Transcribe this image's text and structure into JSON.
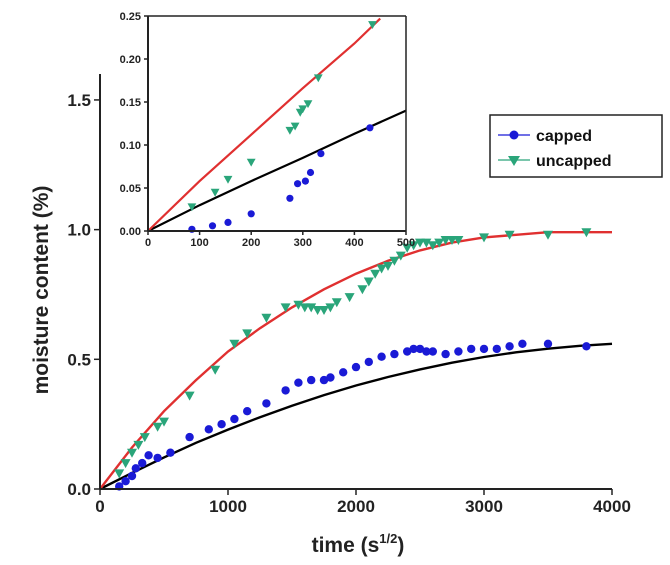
{
  "colors": {
    "capped": "#1a1ad6",
    "uncapped": "#2aa57a",
    "fit_capped": "#000000",
    "fit_uncapped": "#e03030",
    "axis": "#222222"
  },
  "chart_data": [
    {
      "type": "scatter",
      "role": "main",
      "xlabel": "time (s",
      "xlabel_sup": "1/2",
      "xlabel_close": ")",
      "ylabel": "moisture content (%)",
      "xlim": [
        0,
        4000
      ],
      "ylim": [
        0,
        1.6
      ],
      "xticks": [
        0,
        1000,
        2000,
        3000,
        4000
      ],
      "yticks": [
        0.0,
        0.5,
        1.0,
        1.5
      ],
      "xtick_labels": [
        "0",
        "1000",
        "2000",
        "3000",
        "4000"
      ],
      "ytick_labels": [
        "0.0",
        "0.5",
        "1.0",
        "1.5"
      ],
      "legend_position": "top-right",
      "series": [
        {
          "name": "capped",
          "marker": "circle",
          "x": [
            150,
            200,
            250,
            280,
            330,
            380,
            450,
            550,
            700,
            850,
            950,
            1050,
            1150,
            1300,
            1450,
            1550,
            1650,
            1750,
            1800,
            1900,
            2000,
            2100,
            2200,
            2300,
            2400,
            2450,
            2500,
            2550,
            2600,
            2700,
            2800,
            2900,
            3000,
            3100,
            3200,
            3300,
            3500,
            3800
          ],
          "y": [
            0.01,
            0.03,
            0.05,
            0.08,
            0.1,
            0.13,
            0.12,
            0.14,
            0.2,
            0.23,
            0.25,
            0.27,
            0.3,
            0.33,
            0.38,
            0.41,
            0.42,
            0.42,
            0.43,
            0.45,
            0.47,
            0.49,
            0.51,
            0.52,
            0.53,
            0.54,
            0.54,
            0.53,
            0.53,
            0.52,
            0.53,
            0.54,
            0.54,
            0.54,
            0.55,
            0.56,
            0.56,
            0.55
          ]
        },
        {
          "name": "uncapped",
          "marker": "triangle-down",
          "x": [
            150,
            200,
            250,
            300,
            350,
            450,
            500,
            700,
            900,
            1050,
            1150,
            1300,
            1450,
            1550,
            1600,
            1650,
            1700,
            1750,
            1800,
            1850,
            1950,
            2050,
            2100,
            2150,
            2200,
            2250,
            2300,
            2350,
            2400,
            2450,
            2500,
            2550,
            2600,
            2650,
            2700,
            2750,
            2800,
            3000,
            3200,
            3500,
            3800
          ],
          "y": [
            0.06,
            0.1,
            0.14,
            0.17,
            0.2,
            0.24,
            0.26,
            0.36,
            0.46,
            0.56,
            0.6,
            0.66,
            0.7,
            0.71,
            0.7,
            0.7,
            0.69,
            0.69,
            0.7,
            0.72,
            0.74,
            0.77,
            0.8,
            0.83,
            0.85,
            0.86,
            0.88,
            0.9,
            0.93,
            0.94,
            0.95,
            0.95,
            0.94,
            0.95,
            0.96,
            0.96,
            0.96,
            0.97,
            0.98,
            0.98,
            0.99
          ]
        }
      ],
      "fits": [
        {
          "series": "capped",
          "x": [
            0,
            250,
            500,
            750,
            1000,
            1250,
            1500,
            1750,
            2000,
            2250,
            2500,
            2750,
            3000,
            3250,
            3500,
            3750,
            4000
          ],
          "y": [
            0.0,
            0.062,
            0.122,
            0.178,
            0.229,
            0.277,
            0.321,
            0.362,
            0.399,
            0.432,
            0.461,
            0.487,
            0.509,
            0.527,
            0.541,
            0.552,
            0.56
          ]
        },
        {
          "series": "uncapped",
          "x": [
            0,
            250,
            500,
            750,
            1000,
            1250,
            1500,
            1750,
            2000,
            2250,
            2500,
            2750,
            3000,
            3250,
            3500,
            3750,
            4000
          ],
          "y": [
            0.0,
            0.16,
            0.3,
            0.42,
            0.53,
            0.62,
            0.7,
            0.77,
            0.83,
            0.88,
            0.92,
            0.95,
            0.97,
            0.98,
            0.99,
            0.99,
            0.99
          ]
        }
      ]
    },
    {
      "type": "scatter",
      "role": "inset",
      "legend_position": "none",
      "xlim": [
        0,
        500
      ],
      "ylim": [
        0,
        0.25
      ],
      "xticks": [
        0,
        100,
        200,
        300,
        400,
        500
      ],
      "yticks": [
        0.0,
        0.05,
        0.1,
        0.15,
        0.2,
        0.25
      ],
      "xtick_labels": [
        "0",
        "100",
        "200",
        "300",
        "400",
        "500"
      ],
      "ytick_labels": [
        "0.00",
        "0.05",
        "0.10",
        "0.15",
        "0.20",
        "0.25"
      ],
      "series": [
        {
          "name": "capped",
          "marker": "circle",
          "x": [
            85,
            125,
            155,
            200,
            275,
            290,
            305,
            315,
            335,
            430
          ],
          "y": [
            0.002,
            0.006,
            0.01,
            0.02,
            0.038,
            0.055,
            0.058,
            0.068,
            0.09,
            0.12
          ]
        },
        {
          "name": "uncapped",
          "marker": "triangle-down",
          "x": [
            85,
            130,
            155,
            200,
            275,
            285,
            295,
            300,
            310,
            330,
            435
          ],
          "y": [
            0.028,
            0.045,
            0.06,
            0.08,
            0.117,
            0.122,
            0.138,
            0.142,
            0.148,
            0.178,
            0.24
          ]
        }
      ],
      "fits": [
        {
          "series": "capped",
          "x": [
            0,
            100,
            200,
            300,
            400,
            500
          ],
          "y": [
            0.0,
            0.03,
            0.058,
            0.085,
            0.113,
            0.14
          ]
        },
        {
          "series": "uncapped",
          "x": [
            0,
            100,
            200,
            300,
            400,
            450
          ],
          "y": [
            0.0,
            0.058,
            0.112,
            0.166,
            0.218,
            0.247
          ]
        }
      ]
    }
  ]
}
